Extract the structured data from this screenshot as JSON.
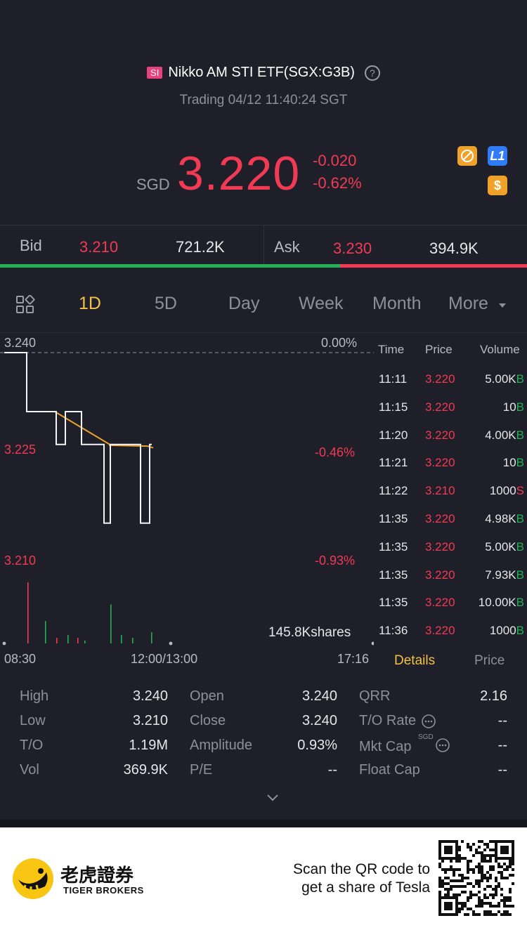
{
  "header": {
    "badge": "SI",
    "title": "Nikko AM STI ETF(SGX:G3B)",
    "help_glyph": "?",
    "status": "Trading 04/12 11:40:24 SGT",
    "currency": "SGD",
    "price": "3.220",
    "change": "-0.020",
    "change_pct": "-0.62%",
    "badge_l1": "L1",
    "badge_dollar": "$"
  },
  "quote": {
    "bid_label": "Bid",
    "bid_price": "3.210",
    "bid_size": "721.2K",
    "ask_label": "Ask",
    "ask_price": "3.230",
    "ask_size": "394.9K"
  },
  "tabs": [
    "1D",
    "5D",
    "Day",
    "Week",
    "Month",
    "More"
  ],
  "chart": {
    "y_top": "3.240",
    "y_top_pct": "0.00%",
    "y_mid": "3.225",
    "y_mid_pct": "-0.46%",
    "y_bot": "3.210",
    "y_bot_pct": "-0.93%",
    "volume_label": "145.8Kshares",
    "time_start": "08:30",
    "time_mid": "12:00/13:00",
    "time_end": "17:16"
  },
  "chart_data": {
    "type": "line",
    "series": [
      {
        "values": [
          3.24,
          3.24,
          3.231,
          3.231,
          3.231,
          3.226,
          3.226,
          3.226,
          3.226,
          3.226
        ]
      },
      {
        "values": [
          3.24,
          3.231,
          3.231,
          3.226,
          3.231,
          3.226,
          3.226,
          3.214,
          3.226,
          3.214,
          3.226
        ]
      }
    ],
    "ylim": [
      3.21,
      3.24
    ],
    "volumes": [
      22,
      8,
      2,
      3,
      2,
      1,
      14,
      3,
      2,
      4
    ]
  },
  "ticks": {
    "headers": [
      "Time",
      "Price",
      "Volume"
    ],
    "rows": [
      {
        "time": "11:11",
        "price": "3.220",
        "vol": "5.00K",
        "side": "B"
      },
      {
        "time": "11:15",
        "price": "3.220",
        "vol": "10",
        "side": "B"
      },
      {
        "time": "11:20",
        "price": "3.220",
        "vol": "4.00K",
        "side": "B"
      },
      {
        "time": "11:21",
        "price": "3.220",
        "vol": "10",
        "side": "B"
      },
      {
        "time": "11:22",
        "price": "3.210",
        "vol": "1000",
        "side": "S"
      },
      {
        "time": "11:35",
        "price": "3.220",
        "vol": "4.98K",
        "side": "B"
      },
      {
        "time": "11:35",
        "price": "3.220",
        "vol": "5.00K",
        "side": "B"
      },
      {
        "time": "11:35",
        "price": "3.220",
        "vol": "7.93K",
        "side": "B"
      },
      {
        "time": "11:35",
        "price": "3.220",
        "vol": "10.00K",
        "side": "B"
      },
      {
        "time": "11:36",
        "price": "3.220",
        "vol": "1000",
        "side": "B"
      }
    ],
    "details_tab": "Details",
    "price_tab": "Price"
  },
  "stats": {
    "high_label": "High",
    "high": "3.240",
    "low_label": "Low",
    "low": "3.210",
    "to_label": "T/O",
    "to": "1.19M",
    "vol_label": "Vol",
    "vol": "369.9K",
    "open_label": "Open",
    "open": "3.240",
    "close_label": "Close",
    "close": "3.240",
    "amp_label": "Amplitude",
    "amp": "0.93%",
    "pe_label": "P/E",
    "pe": "--",
    "qrr_label": "QRR",
    "qrr": "2.16",
    "tor_label": "T/O Rate",
    "tor": "--",
    "mktcap_label": "Mkt Cap",
    "mktcap_unit": "SGD",
    "mktcap": "--",
    "float_label": "Float Cap",
    "float": "--"
  },
  "footer": {
    "logo_cn": "老虎證券",
    "logo_en": "TIGER BROKERS",
    "scan_line1": "Scan the QR code to",
    "scan_line2": "get a share of Tesla"
  },
  "colors": {
    "red": "#f23a55",
    "green": "#23b157",
    "gold": "#f2c14a",
    "bg": "#1e1f28"
  }
}
